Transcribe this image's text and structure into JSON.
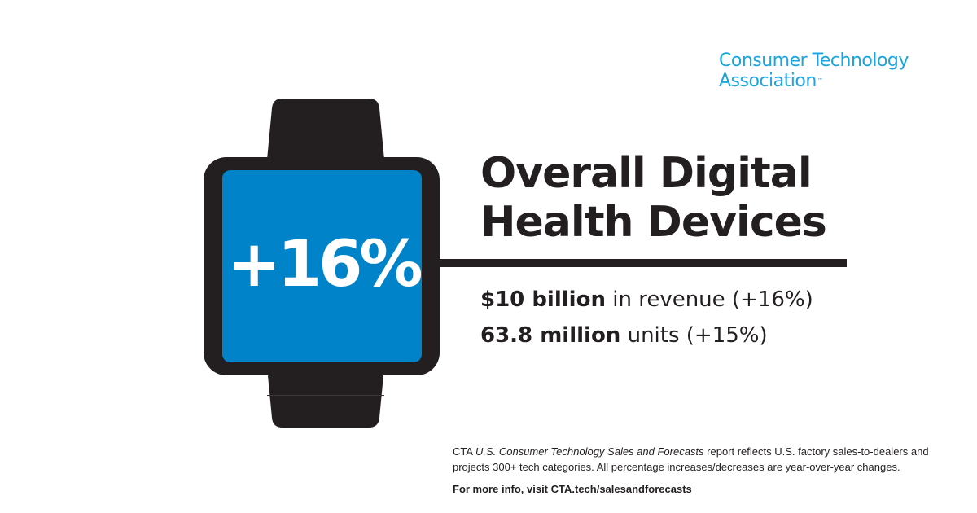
{
  "brand": {
    "logo_line1": "Consumer Technology",
    "logo_line2": "Association",
    "logo_tm": "™",
    "color": "#1aa5e0"
  },
  "watch": {
    "stat": "+16%",
    "screen_color": "#0083c9",
    "frame_color": "#231f20",
    "icon": "smartwatch-icon"
  },
  "heading": {
    "line1": "Overall Digital",
    "line2": "Health Devices"
  },
  "stats": [
    {
      "bold": "$10 billion",
      "rest": " in revenue (+16%)"
    },
    {
      "bold": "63.8 million",
      "rest": " units (+15%)"
    }
  ],
  "footnote": {
    "prefix": "CTA ",
    "report": "U.S. Consumer Technology Sales and Forecasts",
    "suffix": " report reflects U.S. factory sales-to-dealers and projects 300+ tech categories. All percentage increases/decreases are year-over-year changes.",
    "more_prefix": "For more info, visit ",
    "more_link": "CTA.tech/salesandforecasts"
  }
}
